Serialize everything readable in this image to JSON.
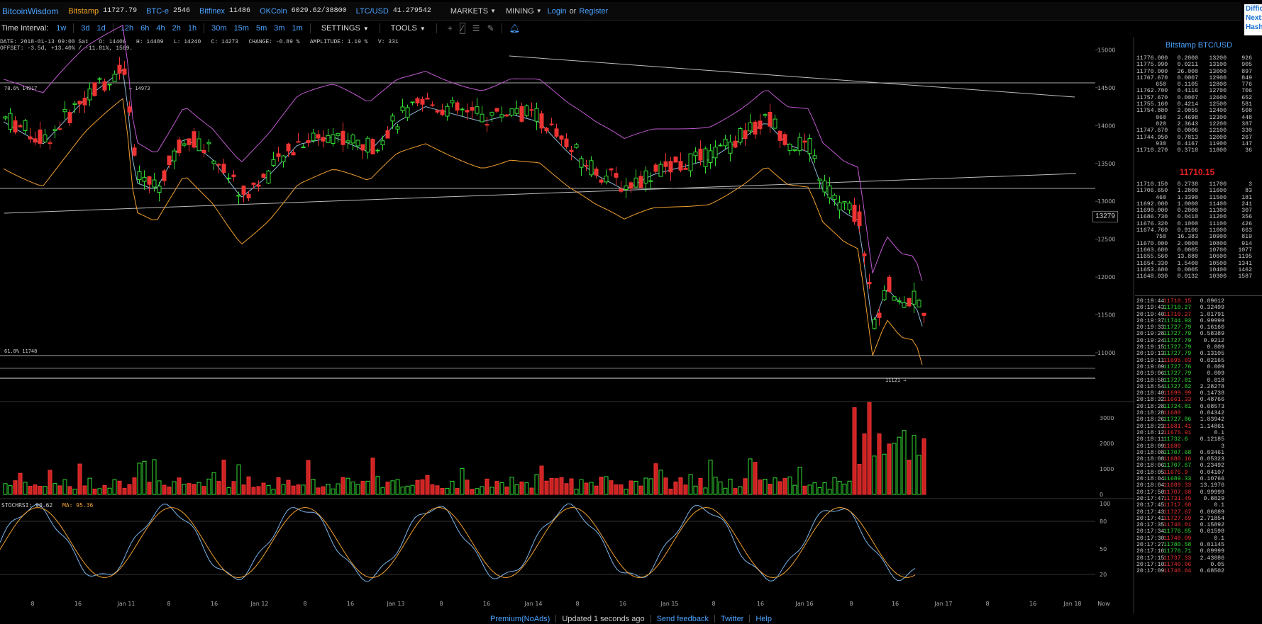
{
  "header": {
    "brand": "BitcoinWisdom",
    "markets": [
      {
        "name": "Bitstamp",
        "value": "11727.79",
        "color": "orange"
      },
      {
        "name": "BTC-e",
        "value": "2546",
        "color": "blue"
      },
      {
        "name": "Bitfinex",
        "value": "11486",
        "color": "blue"
      },
      {
        "name": "OKCoin",
        "value": "6029.62/38800",
        "color": "blue"
      },
      {
        "name": "LTC/USD",
        "value": "41.279542",
        "color": "blue"
      }
    ],
    "markets_menu": "MARKETS",
    "mining_menu": "MINING",
    "login": "Login",
    "or": "or",
    "register": "Register",
    "difficulty_lines": [
      "Diffic",
      "Next:",
      "Hash"
    ]
  },
  "toolbar": {
    "label": "Time Interval:",
    "intervals": [
      "1w",
      "3d",
      "1d",
      "12h",
      "6h",
      "4h",
      "2h",
      "1h",
      "30m",
      "15m",
      "5m",
      "3m",
      "1m"
    ],
    "settings": "SETTINGS",
    "tools": "TOOLS"
  },
  "info": {
    "line1": "DATE: 2018-01-13 09:00 Sat   O: 14406   H: 14409   L: 14240   C: 14273   CHANGE: -0.89 %   AMPLITUDE: 1.19 %   V: 331",
    "line2": "OFFSET: -3.5d, +13.40% / -11.81%, 1569."
  },
  "chart_labels": {
    "fib_top": "78.6% 14917",
    "peak": "← 14973",
    "fib_mid": "61.8% 11748",
    "low": "11121 →",
    "current_price": "13279",
    "stoch": "STOCHRSI: 90.62",
    "ma": "MA: 95.36"
  },
  "chart_data": {
    "type": "candlestick",
    "price_axis": {
      "ticks": [
        11000,
        11500,
        12000,
        12500,
        13000,
        13500,
        14000,
        14500,
        15000
      ]
    },
    "volume_axis": {
      "ticks": [
        0,
        1000,
        2000,
        3000
      ]
    },
    "stoch_axis": {
      "ticks": [
        20,
        50,
        80,
        100
      ]
    },
    "x_ticks": [
      "8",
      "16",
      "Jan 11",
      "8",
      "16",
      "Jan 12",
      "8",
      "16",
      "Jan 13",
      "8",
      "16",
      "Jan 14",
      "8",
      "16",
      "Jan 15",
      "8",
      "16",
      "Jan 16",
      "8",
      "16",
      "Jan 17",
      "8",
      "16",
      "Jan 18",
      "Now"
    ],
    "annotations": {
      "high": 14973,
      "low": 11121,
      "fib_786": 14917,
      "fib_618": 11748
    }
  },
  "orderbook": {
    "title": "Bitstamp BTC/USD",
    "asks": [
      [
        "11776.000",
        "0.2000",
        "13200",
        "926"
      ],
      [
        "11775.990",
        "0.0211",
        "13100",
        "905"
      ],
      [
        "11770.000",
        "26.000",
        "13000",
        "897"
      ],
      [
        "11767.670",
        "0.0007",
        "12900",
        "849"
      ],
      [
        "650",
        "0.1105",
        "12800",
        "776"
      ],
      [
        "11762.700",
        "0.4116",
        "12700",
        "706"
      ],
      [
        "11757.670",
        "0.0007",
        "12600",
        "652"
      ],
      [
        "11755.160",
        "0.4214",
        "12500",
        "581"
      ],
      [
        "11754.880",
        "2.0055",
        "12400",
        "508"
      ],
      [
        "060",
        "2.4698",
        "12300",
        "448"
      ],
      [
        "020",
        "2.3643",
        "12200",
        "387"
      ],
      [
        "11747.670",
        "0.0006",
        "12100",
        "330"
      ],
      [
        "11744.950",
        "0.7813",
        "12000",
        "267"
      ],
      [
        "930",
        "0.4167",
        "11900",
        "147"
      ],
      [
        "11710.270",
        "0.3718",
        "11800",
        "36"
      ]
    ],
    "current": "11710.15",
    "bids": [
      [
        "11710.150",
        "0.2738",
        "11700",
        "3"
      ],
      [
        "11706.650",
        "1.2800",
        "11600",
        "83"
      ],
      [
        "460",
        "1.3390",
        "11500",
        "181"
      ],
      [
        "11692.000",
        "1.0000",
        "11400",
        "241"
      ],
      [
        "11690.000",
        "0.2000",
        "11300",
        "307"
      ],
      [
        "11686.730",
        "0.0410",
        "11200",
        "356"
      ],
      [
        "11676.320",
        "0.1000",
        "11100",
        "426"
      ],
      [
        "11674.760",
        "0.9106",
        "11000",
        "663"
      ],
      [
        "750",
        "16.383",
        "10900",
        "819"
      ],
      [
        "11670.000",
        "2.0000",
        "10800",
        "914"
      ],
      [
        "11663.680",
        "0.0005",
        "10700",
        "1077"
      ],
      [
        "11655.560",
        "13.880",
        "10600",
        "1195"
      ],
      [
        "11654.330",
        "1.5400",
        "10500",
        "1341"
      ],
      [
        "11653.680",
        "0.0005",
        "10400",
        "1462"
      ],
      [
        "11648.030",
        "0.0132",
        "10300",
        "1587"
      ]
    ]
  },
  "trades": [
    [
      "20:19:44",
      "11710.15",
      "0.09612",
      "dn"
    ],
    [
      "20:19:43",
      "11710.27",
      "0.32499",
      "up"
    ],
    [
      "20:19:40",
      "11710.27",
      "1.01791",
      "dn"
    ],
    [
      "20:19:37",
      "11744.93",
      "0.99999",
      "up"
    ],
    [
      "20:19:33",
      "11727.79",
      "0.16160",
      "up"
    ],
    [
      "20:19:28",
      "11727.79",
      "0.58389",
      "up"
    ],
    [
      "20:19:24",
      "11727.79",
      "0.9212",
      "up"
    ],
    [
      "20:19:15",
      "11727.79",
      "0.009",
      "up"
    ],
    [
      "20:19:13",
      "11727.79",
      "0.13105",
      "up"
    ],
    [
      "20:19:11",
      "11695.03",
      "0.02165",
      "dn"
    ],
    [
      "20:19:09",
      "11727.76",
      "0.009",
      "up"
    ],
    [
      "20:19:06",
      "11727.79",
      "0.009",
      "up"
    ],
    [
      "20:18:58",
      "11727.81",
      "0.018",
      "up"
    ],
    [
      "20:18:54",
      "11727.82",
      "2.28278",
      "up"
    ],
    [
      "20:18:40",
      "11699.99",
      "0.14738",
      "dn"
    ],
    [
      "20:18:32",
      "11661.33",
      "0.48766",
      "dn"
    ],
    [
      "20:18:28",
      "11724.81",
      "0.08573",
      "up"
    ],
    [
      "20:18:28",
      "11680",
      "0.04342",
      "dn"
    ],
    [
      "20:18:26",
      "11727.86",
      "1.83942",
      "up"
    ],
    [
      "20:18:23",
      "11681.41",
      "1.14861",
      "dn"
    ],
    [
      "20:18:12",
      "11675.91",
      "0.1",
      "dn"
    ],
    [
      "20:18:11",
      "11732.6",
      "0.12185",
      "up"
    ],
    [
      "20:18:09",
      "11680",
      "3",
      "dn"
    ],
    [
      "20:18:08",
      "11707.68",
      "0.03461",
      "up"
    ],
    [
      "20:18:08",
      "11680.16",
      "0.05323",
      "dn"
    ],
    [
      "20:18:06",
      "11707.67",
      "0.23492",
      "up"
    ],
    [
      "20:18:05",
      "11675.9",
      "0.04107",
      "dn"
    ],
    [
      "20:18:04",
      "11689.33",
      "0.10766",
      "up"
    ],
    [
      "20:18:04",
      "11689.33",
      "13.1976",
      "dn"
    ],
    [
      "20:17:50",
      "11707.68",
      "0.99999",
      "dn"
    ],
    [
      "20:17:47",
      "11731.45",
      "0.8829",
      "dn"
    ],
    [
      "20:17:45",
      "11717.68",
      "0.1",
      "dn"
    ],
    [
      "20:17:43",
      "11727.67",
      "0.06089",
      "dn"
    ],
    [
      "20:17:41",
      "11727.69",
      "2.71854",
      "dn"
    ],
    [
      "20:17:35",
      "11740.01",
      "0.15892",
      "dn"
    ],
    [
      "20:17:34",
      "11776.65",
      "0.01598",
      "up"
    ],
    [
      "20:17:30",
      "11740.09",
      "0.1",
      "dn"
    ],
    [
      "20:17:27",
      "11780.58",
      "0.01145",
      "up"
    ],
    [
      "20:17:16",
      "11776.71",
      "0.09999",
      "up"
    ],
    [
      "20:17:15",
      "11737.33",
      "2.43086",
      "dn"
    ],
    [
      "20:17:10",
      "11740.06",
      "0.05",
      "dn"
    ],
    [
      "20:17:09",
      "11740.04",
      "0.68502",
      "dn"
    ]
  ],
  "footer": {
    "premium": "Premium(NoAds)",
    "updated": "Updated 1 seconds ago",
    "feedback": "Send feedback",
    "twitter": "Twitter",
    "help": "Help"
  },
  "colors": {
    "up": "#33dd33",
    "down": "#ee3333",
    "accent": "#4aa3ff",
    "brand_orange": "#f5a623",
    "boll_upper": "#c05ad0",
    "boll_lower": "#f0a030",
    "ma_line": "#8fb8d8"
  }
}
